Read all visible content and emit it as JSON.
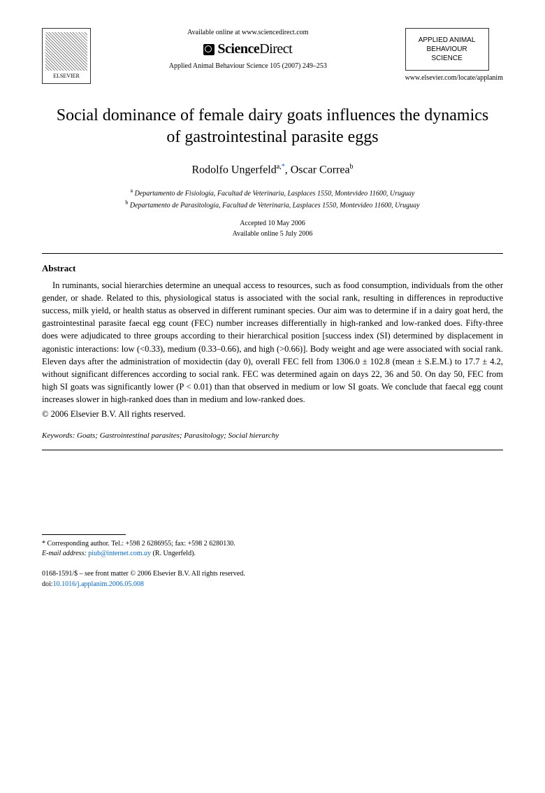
{
  "header": {
    "elsevier_label": "ELSEVIER",
    "available_online": "Available online at www.sciencedirect.com",
    "sd_science": "Science",
    "sd_direct": "Direct",
    "journal_box_line1": "APPLIED ANIMAL",
    "journal_box_line2": "BEHAVIOUR",
    "journal_box_line3": "SCIENCE",
    "citation": "Applied Animal Behaviour Science 105 (2007) 249–253",
    "journal_url": "www.elsevier.com/locate/applanim"
  },
  "title": "Social dominance of female dairy goats influences the dynamics of gastrointestinal parasite eggs",
  "authors": {
    "author1_name": "Rodolfo Ungerfeld",
    "author1_sup": "a,",
    "author1_star": "*",
    "author2_name": ", Oscar Correa",
    "author2_sup": "b"
  },
  "affiliations": {
    "a_sup": "a",
    "a_text": "Departamento de Fisiología, Facultad de Veterinaria, Lasplaces 1550, Montevideo 11600, Uruguay",
    "b_sup": "b",
    "b_text": "Departamento de Parasitología, Facultad de Veterinaria, Lasplaces 1550, Montevideo 11600, Uruguay"
  },
  "dates": {
    "accepted": "Accepted 10 May 2006",
    "online": "Available online 5 July 2006"
  },
  "abstract": {
    "heading": "Abstract",
    "body": "In ruminants, social hierarchies determine an unequal access to resources, such as food consumption, individuals from the other gender, or shade. Related to this, physiological status is associated with the social rank, resulting in differences in reproductive success, milk yield, or health status as observed in different ruminant species. Our aim was to determine if in a dairy goat herd, the gastrointestinal parasite faecal egg count (FEC) number increases differentially in high-ranked and low-ranked does. Fifty-three does were adjudicated to three groups according to their hierarchical position [success index (SI) determined by displacement in agonistic interactions: low (<0.33), medium (0.33–0.66), and high (>0.66)]. Body weight and age were associated with social rank. Eleven days after the administration of moxidectin (day 0), overall FEC fell from 1306.0 ± 102.8 (mean ± S.E.M.) to 17.7 ± 4.2, without significant differences according to social rank. FEC was determined again on days 22, 36 and 50. On day 50, FEC from high SI goats was significantly lower (P < 0.01) than that observed in medium or low SI goats. We conclude that faecal egg count increases slower in high-ranked does than in medium and low-ranked does.",
    "copyright": "© 2006 Elsevier B.V. All rights reserved."
  },
  "keywords": {
    "label": "Keywords:",
    "text": " Goats; Gastrointestinal parasites; Parasitology; Social hierarchy"
  },
  "footer": {
    "corresponding": "* Corresponding author. Tel.: +598 2 6286955; fax: +598 2 6280130.",
    "email_label": "E-mail address:",
    "email": "piub@internet.com.uy",
    "email_suffix": " (R. Ungerfeld).",
    "issn_line": "0168-1591/$ – see front matter © 2006 Elsevier B.V. All rights reserved.",
    "doi_label": "doi:",
    "doi": "10.1016/j.applanim.2006.05.008"
  },
  "colors": {
    "text": "#000000",
    "link": "#0066cc",
    "background": "#ffffff",
    "border": "#333333"
  },
  "typography": {
    "body_font": "Georgia, Times New Roman, serif",
    "title_fontsize": 24,
    "author_fontsize": 16,
    "body_fontsize": 12.5,
    "small_fontsize": 10
  }
}
